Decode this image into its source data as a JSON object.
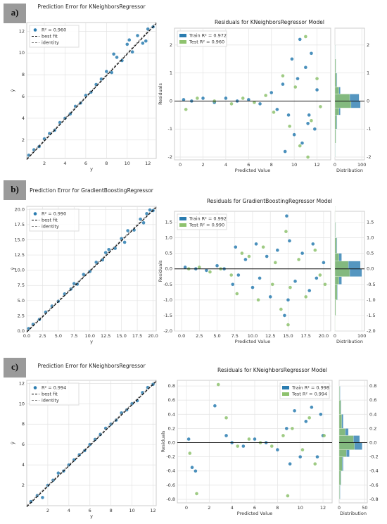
{
  "panels": [
    "a)",
    "b)",
    "c)"
  ],
  "chart_data": [
    {
      "type": "scatter",
      "title": "Prediction Error for KNeighborsRegressor",
      "xlabel": "y",
      "ylabel": "ŷ",
      "legend": "upper left",
      "grid": true,
      "xlim": [
        0.3,
        12.8
      ],
      "xticks": [
        2,
        4,
        6,
        8,
        10,
        12
      ],
      "ylim": [
        0.3,
        12.8
      ],
      "yticks": [
        2,
        4,
        6,
        8,
        10,
        12
      ],
      "series": [
        {
          "name": "R² = 0.960",
          "color": "#2a7cb0",
          "x": [
            0.5,
            1,
            1.5,
            2,
            2.5,
            3,
            3.5,
            4,
            4.5,
            5,
            5.5,
            6,
            6.5,
            7,
            7.5,
            8,
            8.5,
            9,
            9.5,
            10,
            10.5,
            11,
            11.5,
            12,
            12.5,
            8.7,
            10.2,
            11.8
          ],
          "values": [
            0.6,
            1.1,
            1.4,
            2.1,
            2.6,
            2.9,
            3.6,
            4.0,
            4.4,
            5.1,
            5.4,
            6.1,
            6.4,
            7.1,
            7.6,
            8.3,
            8.2,
            9.6,
            9.3,
            10.8,
            10.1,
            11.6,
            10.9,
            12.2,
            12.4,
            9.9,
            11.2,
            11.1
          ]
        }
      ],
      "lines": [
        {
          "name": "best fit",
          "color": "#000000"
        },
        {
          "name": "identity",
          "color": "#888888"
        }
      ]
    },
    {
      "type": "residual",
      "title": "Residuals for KNeighborsRegressor Model",
      "xlabel": "Predicted Value",
      "ylabel": "Residuals",
      "legend": "upper left",
      "grid": true,
      "xlim": [
        -0.5,
        13.2
      ],
      "xticks": [
        0,
        2,
        4,
        6,
        8,
        10,
        12
      ],
      "ylim": [
        -2.1,
        2.6
      ],
      "yticks": [
        -2,
        -1,
        0,
        1,
        2
      ],
      "series": [
        {
          "name": "Train R² = 0.972",
          "color": "#2a7cb0",
          "x": [
            0.3,
            1,
            2,
            3,
            4,
            5,
            6,
            7,
            8,
            8.5,
            9,
            9.5,
            9.8,
            10,
            10.3,
            10.7,
            11,
            11.2,
            11.5,
            11.8,
            12,
            10.5,
            9.2,
            11.3
          ],
          "values": [
            0.05,
            0,
            0.1,
            -0.05,
            0.1,
            0,
            0.05,
            -0.1,
            0.3,
            -0.3,
            0.6,
            -0.5,
            1.5,
            -1.2,
            0.8,
            -1.5,
            1.2,
            -0.8,
            1.7,
            -1.0,
            0.4,
            2.2,
            -1.8,
            -0.5
          ]
        },
        {
          "name": "Test R² = 0.960",
          "color": "#8ec26e",
          "x": [
            0.5,
            1.5,
            3,
            4.5,
            5.5,
            6.5,
            7.5,
            8.2,
            9,
            9.6,
            10.1,
            10.5,
            11,
            11.5,
            12,
            12.3,
            11.2
          ],
          "values": [
            -0.3,
            0.1,
            0,
            -0.1,
            0.1,
            -0.05,
            0.2,
            -0.4,
            0.9,
            -0.9,
            0.5,
            -1.6,
            2.3,
            -0.7,
            0.8,
            -0.2,
            -2.0
          ]
        }
      ],
      "distribution": {
        "xlabel": "Distribution",
        "xlim": [
          0,
          110
        ],
        "xticks": [
          0,
          100
        ],
        "bins": [
          -2,
          -1.5,
          -1,
          -0.5,
          -0.25,
          0,
          0.25,
          0.5,
          1,
          1.5,
          2
        ],
        "counts": [
          [
            2,
            4,
            8,
            20,
            95,
            90,
            20,
            8,
            4,
            2
          ],
          [
            1,
            3,
            6,
            15,
            60,
            55,
            15,
            6,
            3,
            1
          ]
        ]
      }
    },
    {
      "type": "scatter",
      "title": "Prediction Error for GradientBoostingRegressor",
      "xlabel": "y",
      "ylabel": "ŷ",
      "legend": "upper left",
      "grid": true,
      "xlim": [
        0,
        20.5
      ],
      "xticks": [
        {
          "value": 0,
          "label": "0.0"
        },
        2.5,
        {
          "value": 5,
          "label": "5.0"
        },
        7.5,
        {
          "value": 10,
          "label": "10.0"
        },
        12.5,
        {
          "value": 15,
          "label": "15.0"
        },
        17.5,
        {
          "value": 20,
          "label": "20.0"
        }
      ],
      "ylim": [
        0,
        20.5
      ],
      "yticks": [
        {
          "value": 0,
          "label": "0.0"
        },
        2.5,
        {
          "value": 5,
          "label": "5.0"
        },
        7.5,
        {
          "value": 10,
          "label": "10.0"
        },
        12.5,
        {
          "value": 15,
          "label": "15.0"
        },
        17.5,
        {
          "value": 20,
          "label": "20.0"
        }
      ],
      "series": [
        {
          "name": "R² = 0.990",
          "color": "#2a7cb0",
          "x": [
            0.3,
            1,
            2,
            3,
            4,
            5,
            6,
            7,
            7.5,
            8,
            9,
            10,
            11,
            12,
            12.5,
            13,
            14,
            15,
            15.5,
            16,
            17,
            18,
            18.5,
            19,
            19.5,
            20
          ],
          "values": [
            0.4,
            1.1,
            1.9,
            3.1,
            4.1,
            4.9,
            6.1,
            6.9,
            7.8,
            7.7,
            9.3,
            9.8,
            11.3,
            11.7,
            12.9,
            13.4,
            13.6,
            15.2,
            14.6,
            16.5,
            16.6,
            18.4,
            17.8,
            19.3,
            19.9,
            19.8
          ]
        }
      ],
      "lines": [
        {
          "name": "best fit",
          "color": "#000000"
        },
        {
          "name": "identity",
          "color": "#888888"
        }
      ]
    },
    {
      "type": "residual",
      "title": "Residuals for GradientBoostingRegressor Model",
      "xlabel": "Predicted Value",
      "ylabel": "Residuals",
      "legend": "upper left",
      "grid": true,
      "xlim": [
        -1,
        21
      ],
      "xticks": [
        {
          "value": 0,
          "label": "0.0"
        },
        2.5,
        {
          "value": 5,
          "label": "5.0"
        },
        7.5,
        {
          "value": 10,
          "label": "10.0"
        },
        12.5,
        {
          "value": 15,
          "label": "15.0"
        },
        17.5,
        {
          "value": 20,
          "label": "20.0"
        }
      ],
      "ylim": [
        -2,
        1.85
      ],
      "yticks": [
        {
          "value": -2,
          "label": "-2.0"
        },
        -1.5,
        {
          "value": -1,
          "label": "-1.0"
        },
        -0.5,
        {
          "value": 0,
          "label": "0.0"
        },
        0.5,
        {
          "value": 1,
          "label": "1.0"
        },
        1.5
      ],
      "series": [
        {
          "name": "Train R² = 0.992",
          "color": "#2a7cb0",
          "x": [
            0.5,
            2,
            3.5,
            5,
            6,
            7.2,
            7.6,
            8,
            9,
            10,
            10.5,
            11,
            12,
            12.5,
            13.5,
            14.5,
            14.8,
            15,
            15.2,
            16,
            17,
            18,
            18.5,
            19,
            20
          ],
          "values": [
            0.05,
            0,
            -0.05,
            0.1,
            0,
            -0.5,
            0.7,
            -0.2,
            0.3,
            -0.6,
            0.8,
            -0.3,
            0.4,
            -0.9,
            0.6,
            -1.5,
            1.7,
            -1.0,
            0.9,
            -0.4,
            0.5,
            -0.7,
            0.8,
            -0.3,
            0.2
          ]
        },
        {
          "name": "Test R² = 0.990",
          "color": "#8ec26e",
          "x": [
            1,
            2.5,
            4,
            5.5,
            7,
            7.8,
            8.5,
            9.5,
            10.8,
            11.5,
            12.8,
            13.2,
            14,
            14.7,
            15,
            15.3,
            16.5,
            17.5,
            18.8,
            19.5,
            20.2
          ],
          "values": [
            0,
            0.05,
            -0.1,
            0,
            -0.2,
            -0.8,
            0.5,
            0.4,
            -1.0,
            0.7,
            -0.5,
            0.2,
            -1.3,
            1.2,
            -1.8,
            -0.6,
            0.3,
            -0.9,
            0.6,
            -0.2,
            -0.5
          ]
        }
      ],
      "distribution": {
        "xlabel": "Distribution",
        "xlim": [
          0,
          110
        ],
        "xticks": [
          0,
          100
        ],
        "bins": [
          -2,
          -1.5,
          -1,
          -0.5,
          -0.25,
          0,
          0.25,
          0.5,
          1,
          1.5,
          2
        ],
        "counts": [
          [
            1,
            3,
            10,
            25,
            100,
            95,
            25,
            8,
            3,
            1
          ],
          [
            1,
            3,
            8,
            15,
            55,
            50,
            15,
            6,
            2,
            1
          ]
        ]
      }
    },
    {
      "type": "scatter",
      "title": "Prediction Error for KNeighborsRegressor",
      "xlabel": "y",
      "ylabel": "ŷ",
      "legend": "upper left",
      "grid": true,
      "xlim": [
        0,
        12.3
      ],
      "xticks": [
        2,
        4,
        6,
        8,
        10,
        12
      ],
      "ylim": [
        0,
        12.3
      ],
      "yticks": [
        2,
        4,
        6,
        8,
        10,
        12
      ],
      "series": [
        {
          "name": "R² = 0.994",
          "color": "#2a7cb0",
          "x": [
            0.4,
            1,
            1.5,
            2,
            2.5,
            3,
            3.5,
            4,
            4.5,
            5,
            5.5,
            6,
            6.5,
            7,
            7.5,
            8,
            8.5,
            9,
            9.5,
            10,
            10.5,
            11,
            11.5,
            12
          ],
          "values": [
            0.4,
            1.0,
            0.8,
            2.0,
            2.5,
            3.2,
            3.4,
            4.0,
            4.5,
            5.0,
            5.4,
            6.0,
            6.5,
            7.0,
            7.6,
            8.0,
            8.4,
            9.1,
            9.4,
            10.0,
            10.3,
            11.1,
            11.6,
            11.9
          ]
        }
      ],
      "lines": [
        {
          "name": "best fit",
          "color": "#000000"
        },
        {
          "name": "identity",
          "color": "#888888"
        }
      ]
    },
    {
      "type": "residual",
      "title": "Residuals for KNeighborsRegressor Model",
      "xlabel": "Predicted Value",
      "ylabel": "Residuals",
      "legend": "upper right",
      "grid": true,
      "xlim": [
        -0.8,
        12.8
      ],
      "xticks": [
        0,
        2,
        4,
        6,
        8,
        10,
        12
      ],
      "ylim": [
        -0.85,
        0.88
      ],
      "yticks": [
        -0.8,
        -0.6,
        -0.4,
        -0.2,
        {
          "value": 0,
          "label": "0.0"
        },
        0.2,
        0.4,
        0.6,
        0.8
      ],
      "series": [
        {
          "name": "Train R² = 0.998",
          "color": "#2a7cb0",
          "x": [
            0.2,
            0.5,
            0.8,
            2.5,
            3.5,
            4,
            5,
            6,
            7,
            8,
            8.8,
            9.1,
            9.5,
            10,
            10.5,
            11,
            11.5,
            11.8,
            12
          ],
          "values": [
            0.05,
            -0.35,
            -0.4,
            0.52,
            0.1,
            0,
            -0.05,
            0.05,
            0,
            -0.1,
            0.2,
            -0.3,
            0.45,
            -0.2,
            0.3,
            0.5,
            -0.2,
            0.4,
            0.1
          ]
        },
        {
          "name": "Test R² = 0.994",
          "color": "#8ec26e",
          "x": [
            0.3,
            0.9,
            2.8,
            3.5,
            4.5,
            5.5,
            6.5,
            7.5,
            8.5,
            8.9,
            9.3,
            10.2,
            10.8,
            11.3,
            12.1
          ],
          "values": [
            -0.15,
            -0.72,
            0.82,
            0.35,
            -0.05,
            0.05,
            0,
            -0.05,
            0.1,
            -0.75,
            0.2,
            -0.1,
            0.35,
            -0.3,
            0.1
          ]
        }
      ],
      "distribution": {
        "xlabel": "Distribution",
        "xlim": [
          0,
          55
        ],
        "xticks": [
          0,
          50
        ],
        "bins": [
          -0.8,
          -0.6,
          -0.4,
          -0.2,
          -0.1,
          0,
          0.1,
          0.2,
          0.4,
          0.6,
          0.8
        ],
        "counts": [
          [
            2,
            4,
            8,
            20,
            45,
            40,
            18,
            8,
            4,
            2
          ],
          [
            1,
            3,
            6,
            14,
            30,
            28,
            12,
            5,
            3,
            1
          ]
        ]
      }
    }
  ]
}
